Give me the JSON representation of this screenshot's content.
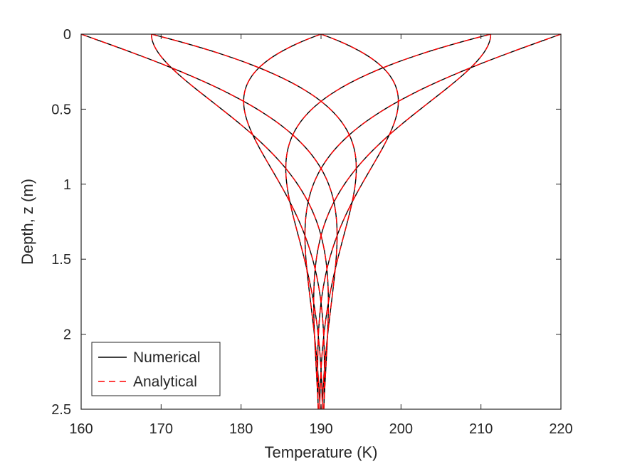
{
  "chart_data": {
    "type": "line",
    "title": "",
    "xlabel": "Temperature (K)",
    "ylabel": "Depth, z (m)",
    "xlim": [
      160,
      220
    ],
    "ylim": [
      0,
      2.5
    ],
    "y_reversed": true,
    "xticks": [
      160,
      170,
      180,
      190,
      200,
      210,
      220
    ],
    "yticks": [
      0,
      0.5,
      1,
      1.5,
      2,
      2.5
    ],
    "xtick_labels": [
      "160",
      "170",
      "180",
      "190",
      "200",
      "210",
      "220"
    ],
    "ytick_labels": [
      "0",
      "0.5",
      "1",
      "1.5",
      "2",
      "2.5"
    ],
    "grid": false,
    "legend_position": "bottom-left",
    "model": {
      "mean_temperature": 190,
      "surface_amplitude": 30,
      "damping_depth": 0.57
    },
    "phases": [
      0,
      0.785,
      1.571,
      2.356,
      3.142,
      3.927,
      4.712,
      5.498
    ],
    "series": [
      {
        "name": "Numerical",
        "color": "#000000",
        "dash": "solid"
      },
      {
        "name": "Analytical",
        "color": "#ff0000",
        "dash": "dashed"
      }
    ]
  },
  "legend": {
    "items": [
      {
        "label": "Numerical",
        "color": "#000000"
      },
      {
        "label": "Analytical",
        "color": "#ff0000"
      }
    ]
  }
}
